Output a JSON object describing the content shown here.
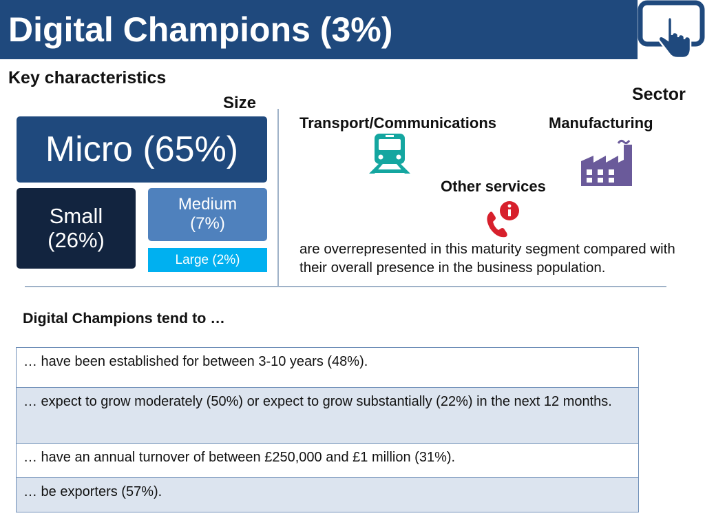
{
  "header": {
    "title": "Digital Champions (3%)",
    "icon": "tablet-touch-icon"
  },
  "key_characteristics": {
    "heading": "Key characteristics",
    "size_label": "Size",
    "sector_label": "Sector"
  },
  "size": {
    "micro": "Micro (65%)",
    "small_line1": "Small",
    "small_line2": "(26%)",
    "medium_line1": "Medium",
    "medium_line2": "(7%)",
    "large": "Large (2%)"
  },
  "sectors": {
    "transport": "Transport/Communications",
    "manufacturing": "Manufacturing",
    "other": "Other services",
    "description": "are overrepresented in this maturity segment compared with their overall presence in the business population."
  },
  "tendencies": {
    "heading": "Digital Champions tend to …",
    "items": [
      "… have been established for between 3-10 years (48%).",
      "… expect to grow moderately (50%) or expect to grow substantially (22%) in the next 12 months.",
      "… have an annual turnover of between £250,000 and £1 million (31%).",
      "… be exporters (57%)."
    ]
  },
  "colors": {
    "header_bg": "#1f497d",
    "micro": "#1f497d",
    "small": "#12243f",
    "medium": "#4f81bd",
    "large": "#00b0f0",
    "sector_icon_teal": "#14a6a0",
    "sector_icon_purple": "#6a5a9a",
    "sector_icon_red": "#d7202c"
  }
}
